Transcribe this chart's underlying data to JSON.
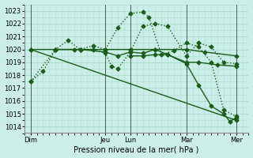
{
  "xlabel": "Pression niveau de la mer( hPa )",
  "ylim": [
    1013.5,
    1023.5
  ],
  "xlim": [
    0,
    18
  ],
  "bg_color": "#cceee8",
  "line_color": "#1a5c1a",
  "grid_color": "#aaddcc",
  "day_labels": [
    "Dim",
    "Jeu",
    "Lun",
    "Mar",
    "Mer"
  ],
  "day_positions": [
    0.5,
    6.5,
    8.5,
    13.0,
    17.0
  ],
  "vline_positions": [
    0.5,
    6.5,
    8.5,
    13.0,
    17.0
  ],
  "ytick_labels": [
    "1014",
    "1015",
    "1016",
    "1017",
    "1018",
    "1019",
    "1020",
    "1021",
    "1022",
    "1023"
  ],
  "ytick_values": [
    1014,
    1015,
    1016,
    1017,
    1018,
    1019,
    1020,
    1021,
    1022,
    1023
  ],
  "series": [
    {
      "x": [
        0.5,
        1.5,
        2.5,
        3.5,
        4.5,
        5.5,
        6.5,
        7.5,
        8.5,
        9.5,
        10.0,
        11.0,
        12.0,
        13.0,
        14.0,
        15.0,
        16.0,
        17.0
      ],
      "y": [
        1017.5,
        1018.3,
        1020.0,
        1020.7,
        1020.0,
        1020.3,
        1020.0,
        1021.7,
        1022.8,
        1022.9,
        1022.5,
        1019.6,
        1019.9,
        1020.5,
        1020.2,
        1019.0,
        1015.3,
        1014.8
      ],
      "linestyle": ":",
      "marker": "D",
      "markersize": 2.5,
      "linewidth": 1.0
    },
    {
      "x": [
        0.5,
        2.5,
        4.5,
        6.5,
        8.5,
        10.5,
        13.0,
        14.5,
        17.0
      ],
      "y": [
        1020.0,
        1020.0,
        1020.0,
        1020.0,
        1020.0,
        1020.0,
        1020.0,
        1019.8,
        1019.5
      ],
      "linestyle": "-",
      "marker": "D",
      "markersize": 2.5,
      "linewidth": 1.0
    },
    {
      "x": [
        2.5,
        4.5,
        6.5,
        7.5,
        8.5,
        9.5,
        10.5,
        11.5,
        13.0,
        14.0,
        15.5,
        17.0
      ],
      "y": [
        1020.0,
        1020.0,
        1019.8,
        1019.5,
        1019.8,
        1019.7,
        1020.0,
        1019.6,
        1019.0,
        1019.0,
        1018.8,
        1018.7
      ],
      "linestyle": "-",
      "marker": "D",
      "markersize": 2.5,
      "linewidth": 1.0
    },
    {
      "x": [
        0.5,
        2.5,
        4.0,
        5.5,
        6.5,
        7.0,
        7.5,
        8.5,
        9.5,
        10.5,
        11.5,
        13.0,
        14.0,
        15.0,
        16.0,
        17.0
      ],
      "y": [
        1017.5,
        1020.0,
        1020.0,
        1020.0,
        1019.7,
        1018.7,
        1018.5,
        1019.8,
        1021.8,
        1022.0,
        1021.8,
        1019.5,
        1020.5,
        1020.2,
        1019.0,
        1018.9
      ],
      "linestyle": ":",
      "marker": "D",
      "markersize": 2.5,
      "linewidth": 1.0
    },
    {
      "x": [
        0.5,
        17.0
      ],
      "y": [
        1020.0,
        1014.5
      ],
      "linestyle": "-",
      "marker": "D",
      "markersize": 2.5,
      "linewidth": 1.0
    },
    {
      "x": [
        8.5,
        9.5,
        10.5,
        11.5,
        13.0,
        14.0,
        15.0,
        16.0,
        16.5,
        17.0
      ],
      "y": [
        1019.5,
        1019.5,
        1019.6,
        1019.6,
        1018.9,
        1017.2,
        1015.6,
        1015.0,
        1014.4,
        1014.7
      ],
      "linestyle": "-",
      "marker": "D",
      "markersize": 2.5,
      "linewidth": 1.0
    }
  ]
}
